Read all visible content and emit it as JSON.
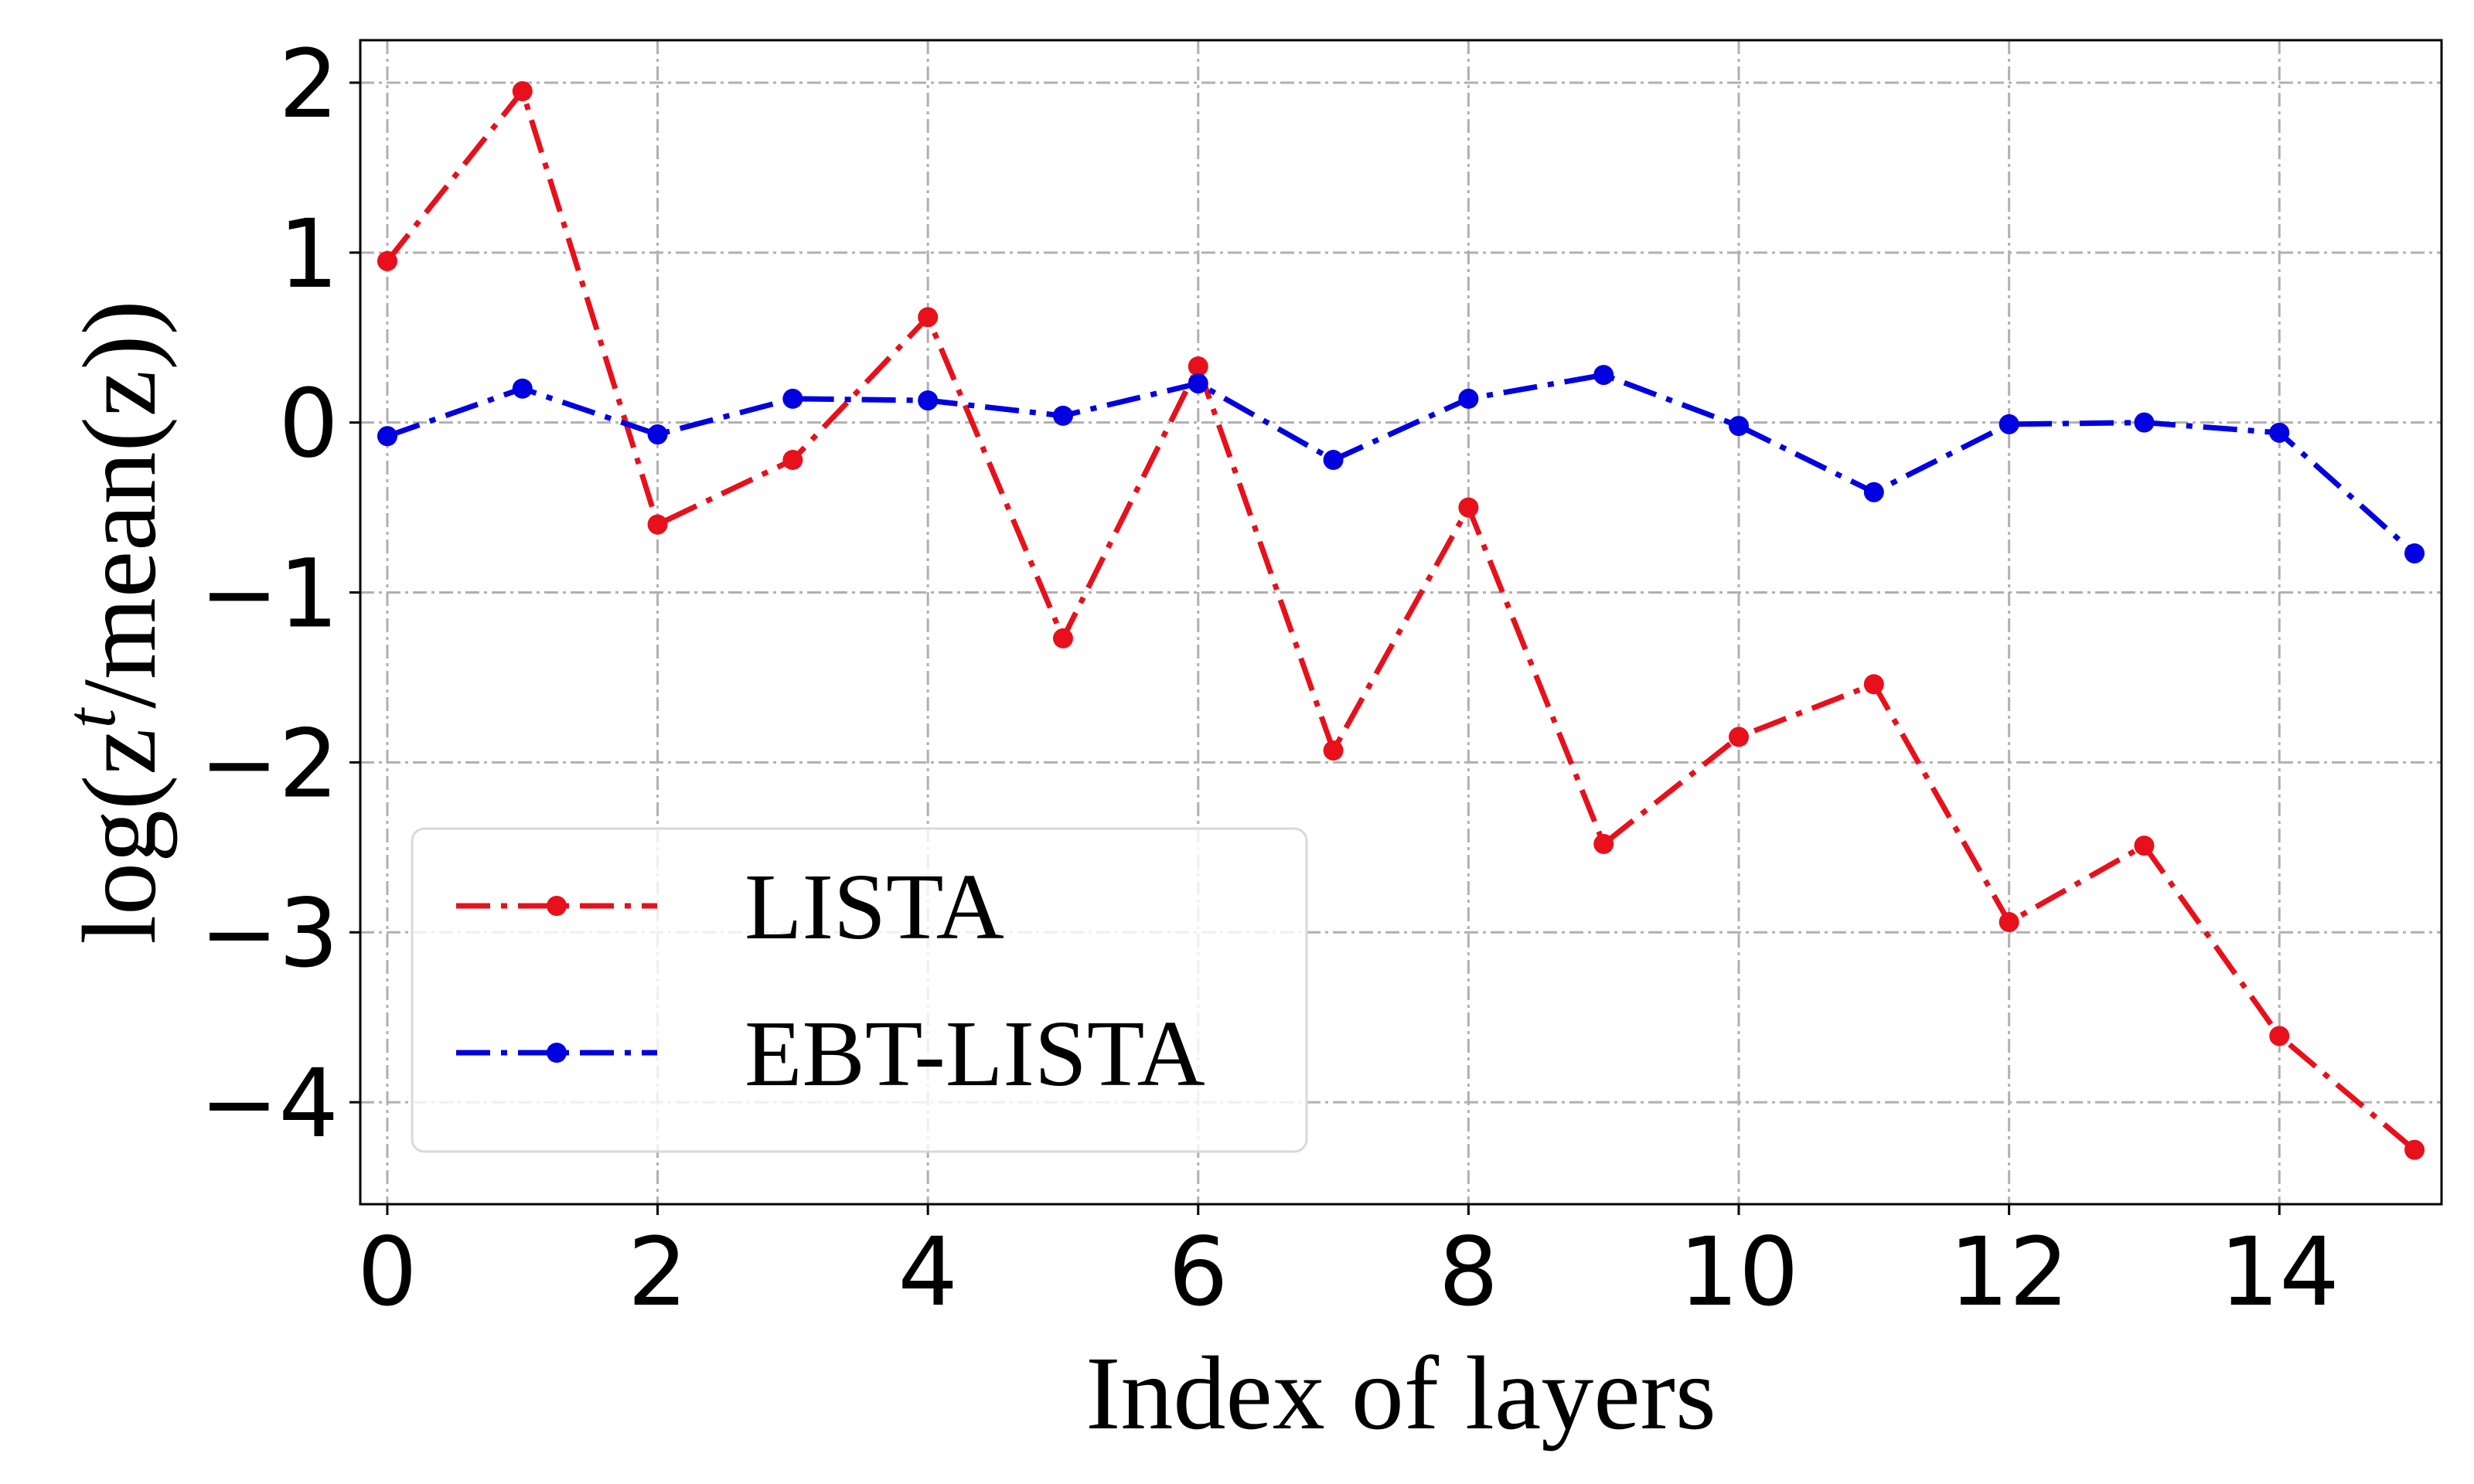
{
  "chart_data": {
    "type": "line",
    "xlabel": "Index of layers",
    "ylabel_main": "log(z",
    "ylabel_sup": "t",
    "ylabel_rest": "/mean(z))",
    "xlim": [
      -0.2,
      15.2
    ],
    "ylim": [
      -4.6,
      2.25
    ],
    "x_ticks": [
      0,
      2,
      4,
      6,
      8,
      10,
      12,
      14
    ],
    "x_tick_labels": [
      "0",
      "2",
      "4",
      "6",
      "8",
      "10",
      "12",
      "14"
    ],
    "x_grid": [
      0,
      2,
      4,
      6,
      8,
      10,
      12,
      14
    ],
    "y_ticks": [
      2,
      1,
      0,
      -1,
      -2,
      -3,
      -4
    ],
    "y_tick_labels": [
      "2",
      "1",
      "0",
      "−1",
      "−2",
      "−3",
      "−4"
    ],
    "grid": true,
    "legend_position": "lower-left",
    "x": [
      0,
      1,
      2,
      3,
      4,
      5,
      6,
      7,
      8,
      9,
      10,
      11,
      12,
      13,
      14,
      15
    ],
    "series": [
      {
        "name": "LISTA",
        "color": "#e8101a",
        "line_style": "dash-dot",
        "marker": "circle",
        "values": [
          0.95,
          1.95,
          -0.6,
          -0.22,
          0.62,
          -1.27,
          0.33,
          -1.93,
          -0.5,
          -2.48,
          -1.85,
          -1.54,
          -2.94,
          -2.49,
          -3.61,
          -4.28
        ]
      },
      {
        "name": "EBT-LISTA",
        "color": "#0000e0",
        "line_style": "dash-dot",
        "marker": "circle",
        "values": [
          -0.08,
          0.2,
          -0.07,
          0.14,
          0.13,
          0.04,
          0.23,
          -0.22,
          0.14,
          0.28,
          -0.02,
          -0.41,
          -0.01,
          0.0,
          -0.06,
          -0.77
        ]
      }
    ]
  }
}
